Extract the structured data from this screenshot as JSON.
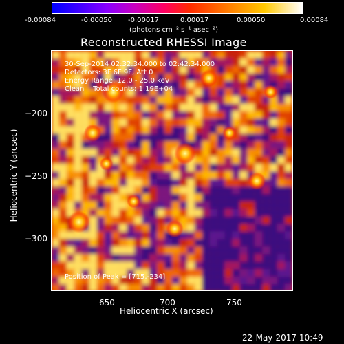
{
  "colorbar": {
    "ticks": [
      "-0.00084",
      "-0.00050",
      "-0.00017",
      "0.00017",
      "0.00050",
      "0.00084"
    ],
    "units": "(photons cm⁻² s⁻¹ asec⁻²)"
  },
  "title": "Reconstructed RHESSI Image",
  "info": {
    "line1": "30-Sep-2014 02:32:34.000 to 02:42:34.000",
    "line2": "Detectors: 3F 6F 9F, Att 0",
    "line3": "Energy Range: 12.0 - 25.0 keV",
    "line4": "Clean    Total counts: 1.19E+04",
    "peak": "Position of Peak = [715,-234]"
  },
  "axes": {
    "xlabel": "Heliocentric X (arcsec)",
    "ylabel": "Heliocentric Y (arcsec)",
    "xticks": [
      "650",
      "700",
      "750"
    ],
    "yticks": [
      "−200",
      "−250",
      "−300"
    ]
  },
  "footer": {
    "timestamp": "22-May-2017 10:49"
  }
}
